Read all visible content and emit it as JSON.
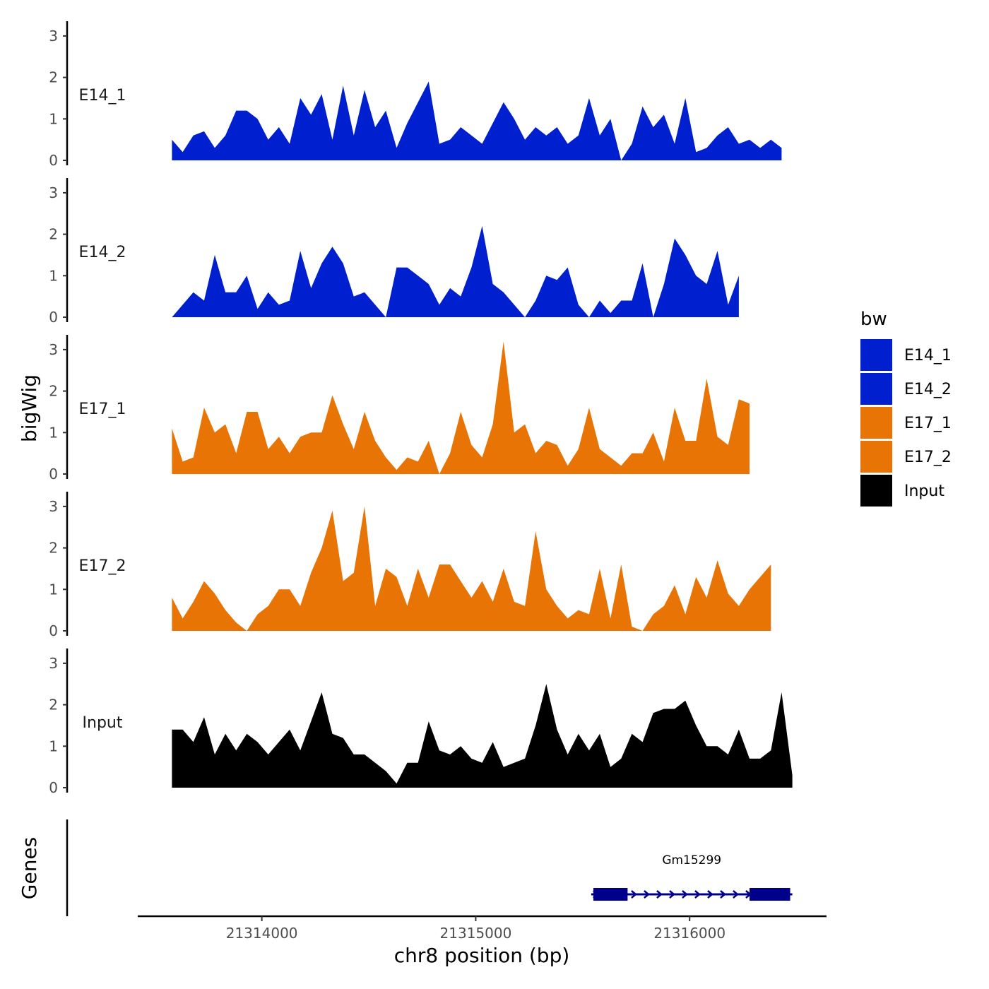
{
  "chart_data": {
    "type": "area",
    "title": "",
    "xlabel": "chr8 position (bp)",
    "ylabel": "bigWig",
    "genes_label": "Genes",
    "xlim": [
      21313420,
      21316640
    ],
    "x_ticks": [
      21314000,
      21315000,
      21316000
    ],
    "x_tick_labels": [
      "21314000",
      "21315000",
      "21316000"
    ],
    "ylim": [
      0,
      3.3
    ],
    "y_ticks": [
      0,
      1,
      2,
      3
    ],
    "y_tick_labels": [
      "0",
      "1",
      "2",
      "3"
    ],
    "legend": {
      "title": "bw",
      "position": "right",
      "entries": [
        {
          "label": "E14_1",
          "color": "#0020d0"
        },
        {
          "label": "E14_2",
          "color": "#0020d0"
        },
        {
          "label": "E17_1",
          "color": "#e87405"
        },
        {
          "label": "E17_2",
          "color": "#e87405"
        },
        {
          "label": "Input",
          "color": "#000000"
        }
      ]
    },
    "x_start": 21313580,
    "x_step": 50,
    "series": [
      {
        "name": "E14_1",
        "color": "#0020d0",
        "values": [
          0.5,
          0.2,
          0.6,
          0.7,
          0.3,
          0.6,
          1.2,
          1.2,
          1.0,
          0.5,
          0.8,
          0.4,
          1.5,
          1.1,
          1.6,
          0.5,
          1.8,
          0.6,
          1.7,
          0.8,
          1.2,
          0.3,
          0.9,
          1.4,
          1.9,
          0.4,
          0.5,
          0.8,
          0.6,
          0.4,
          0.9,
          1.4,
          1.0,
          0.5,
          0.8,
          0.6,
          0.8,
          0.4,
          0.6,
          1.5,
          0.6,
          1.0,
          0.0,
          0.4,
          1.3,
          0.8,
          1.1,
          0.4,
          1.5,
          0.2,
          0.3,
          0.6,
          0.8,
          0.4,
          0.5,
          0.3,
          0.5,
          0.3
        ],
        "missing": [
          42
        ]
      },
      {
        "name": "E14_2",
        "color": "#0020d0",
        "values": [
          0.0,
          0.3,
          0.6,
          0.4,
          1.5,
          0.6,
          0.6,
          1.0,
          0.2,
          0.6,
          0.3,
          0.4,
          1.6,
          0.7,
          1.3,
          1.7,
          1.3,
          0.5,
          0.6,
          0.3,
          0.0,
          1.2,
          1.2,
          1.0,
          0.8,
          0.3,
          0.7,
          0.5,
          1.2,
          2.2,
          0.8,
          0.6,
          0.3,
          0.0,
          0.4,
          1.0,
          0.9,
          1.2,
          0.3,
          0.0,
          0.4,
          0.1,
          0.4,
          0.4,
          1.3,
          0.0,
          0.8,
          1.9,
          1.5,
          1.0,
          0.8,
          1.6,
          0.3,
          1.0
        ],
        "missing": [
          0,
          20,
          33,
          39,
          45
        ]
      },
      {
        "name": "E17_1",
        "color": "#e87405",
        "values": [
          1.1,
          0.3,
          0.4,
          1.6,
          1.0,
          1.2,
          0.5,
          1.5,
          1.5,
          0.6,
          0.9,
          0.5,
          0.9,
          1.0,
          1.0,
          1.9,
          1.2,
          0.6,
          1.5,
          0.8,
          0.4,
          0.1,
          0.4,
          0.3,
          0.8,
          0.0,
          0.5,
          1.5,
          0.7,
          0.4,
          1.2,
          3.2,
          1.0,
          1.2,
          0.5,
          0.8,
          0.7,
          0.2,
          0.6,
          1.6,
          0.6,
          0.4,
          0.2,
          0.5,
          0.5,
          1.0,
          0.3,
          1.6,
          0.8,
          0.8,
          2.3,
          0.9,
          0.7,
          1.8,
          1.7
        ],
        "missing": []
      },
      {
        "name": "E17_2",
        "color": "#e87405",
        "values": [
          0.8,
          0.3,
          0.7,
          1.2,
          0.9,
          0.5,
          0.2,
          0.1,
          0.4,
          0.6,
          1.0,
          1.0,
          0.6,
          1.4,
          2.0,
          2.9,
          1.2,
          1.4,
          3.0,
          0.6,
          1.5,
          1.3,
          0.6,
          1.5,
          0.8,
          1.6,
          1.6,
          1.2,
          0.8,
          1.2,
          0.7,
          1.5,
          0.7,
          0.6,
          2.4,
          1.0,
          0.6,
          0.3,
          0.5,
          0.4,
          1.5,
          0.3,
          1.6,
          0.1,
          0.0,
          0.4,
          0.6,
          1.1,
          0.4,
          1.3,
          0.8,
          1.7,
          0.9,
          0.6,
          1.0,
          1.3,
          1.6
        ],
        "missing": [
          7
        ]
      },
      {
        "name": "Input",
        "color": "#000000",
        "values": [
          1.4,
          1.4,
          1.1,
          1.7,
          0.8,
          1.3,
          0.9,
          1.3,
          1.1,
          0.8,
          1.1,
          1.4,
          0.9,
          1.6,
          2.3,
          1.3,
          1.2,
          0.8,
          0.8,
          0.6,
          0.4,
          0.1,
          0.6,
          0.6,
          1.6,
          0.9,
          0.8,
          1.0,
          0.7,
          0.6,
          1.1,
          0.5,
          0.6,
          0.7,
          1.5,
          2.5,
          1.4,
          0.8,
          1.3,
          0.9,
          1.3,
          0.5,
          0.7,
          1.3,
          1.1,
          1.8,
          1.9,
          1.9,
          2.1,
          1.5,
          1.0,
          1.0,
          0.8,
          1.4,
          0.7,
          0.7,
          0.9,
          2.3,
          0.3
        ],
        "missing": []
      }
    ],
    "genes": [
      {
        "name": "Gm15299",
        "start": 21315540,
        "end": 21316480,
        "strand": "+",
        "color": "#00008b",
        "exons": [
          [
            21315550,
            21315710
          ],
          [
            21316280,
            21316470
          ]
        ]
      }
    ]
  }
}
